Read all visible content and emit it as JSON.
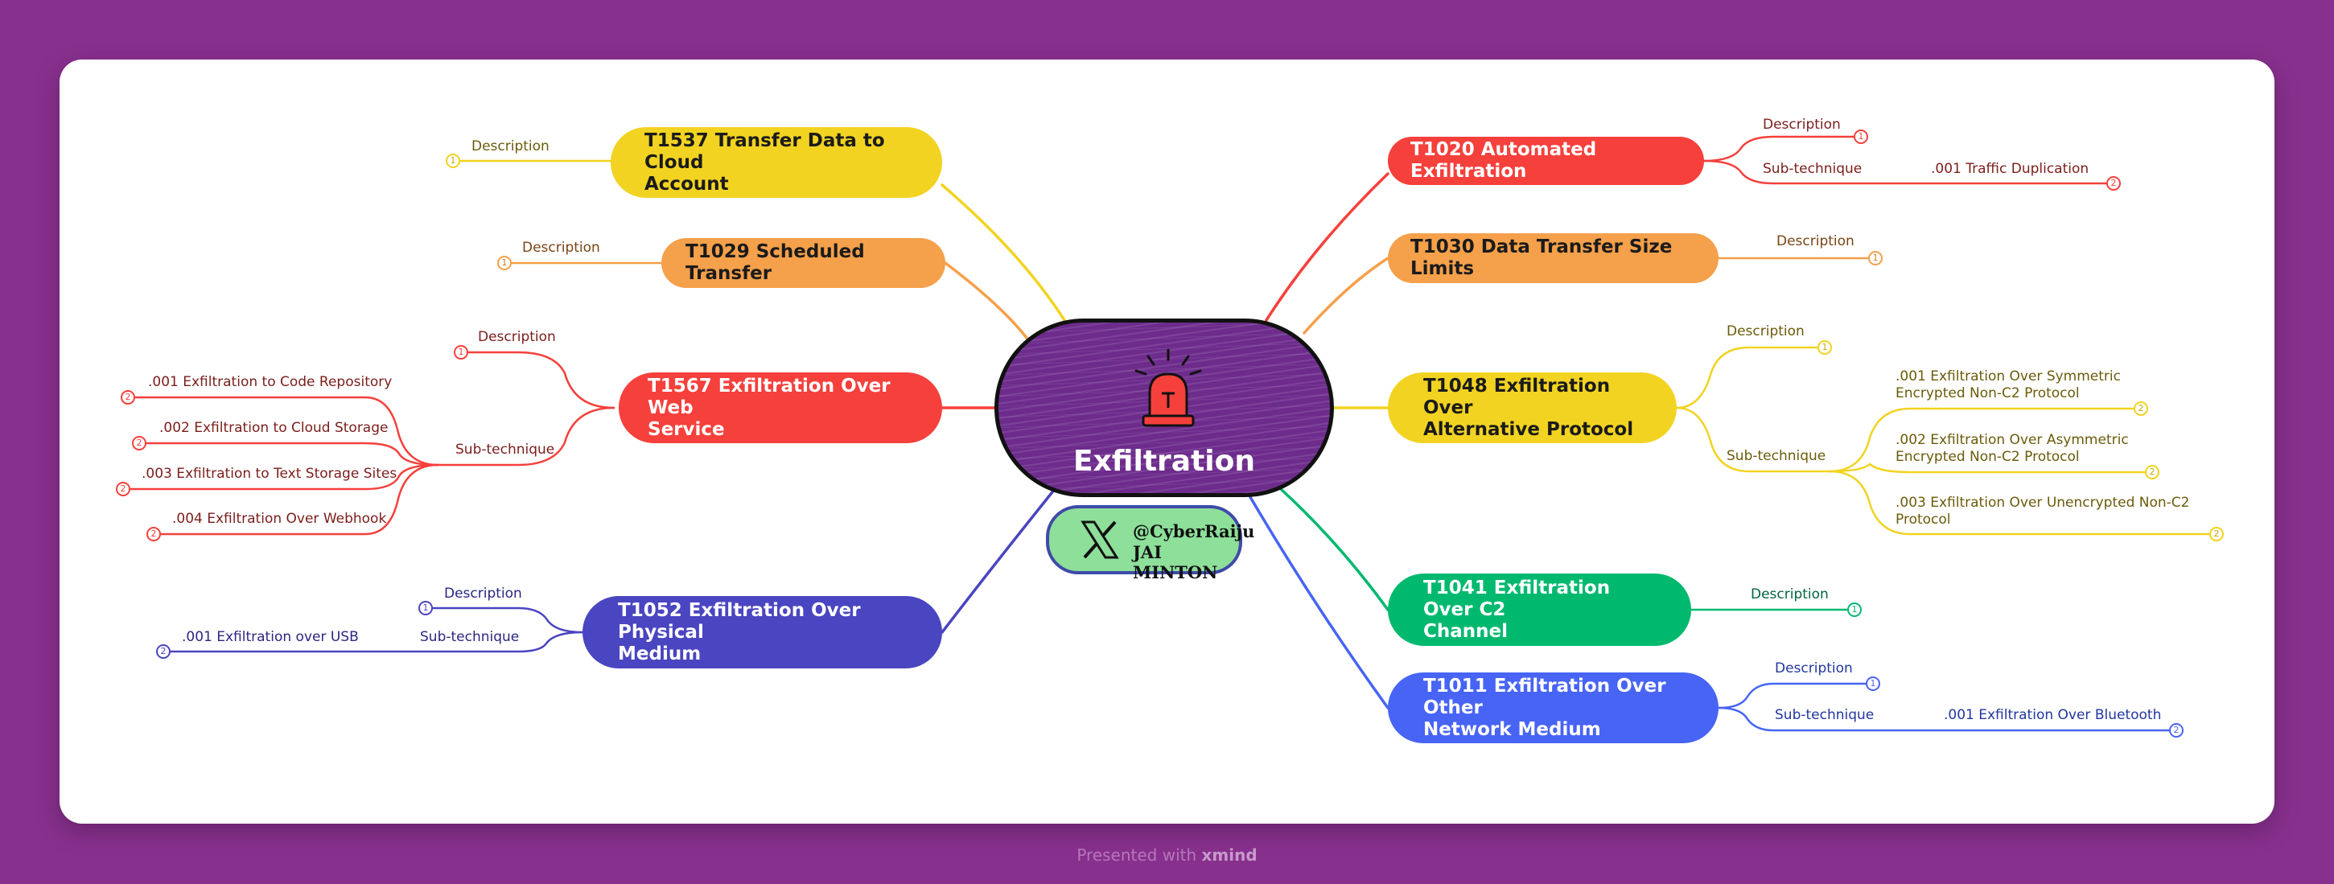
{
  "center": {
    "title": "Exfiltration",
    "icon": "alarm-siren-icon"
  },
  "brand": {
    "icon": "x-logo-icon",
    "handle": "@CyberRaiju",
    "name": "JAI MINTON"
  },
  "footer": {
    "prefix": "Presented with",
    "brand": "xmind"
  },
  "colors": {
    "background": "#88308e",
    "yellow": "#f2d321",
    "orange": "#f5a04a",
    "red": "#f5403c",
    "indigo": "#4a45c0",
    "green": "#00b96f",
    "blue": "#4764f5"
  },
  "branches": {
    "t1537": {
      "title_line1": "T1537 Transfer Data to Cloud",
      "title_line2": "Account",
      "description": "Description",
      "badge1": "1"
    },
    "t1029": {
      "title": "T1029 Scheduled Transfer",
      "description": "Description",
      "badge1": "1"
    },
    "t1567": {
      "title_line1": "T1567 Exfiltration Over Web",
      "title_line2": "Service",
      "description": "Description",
      "badge1": "1",
      "subtechnique": "Sub-technique",
      "subs": [
        {
          "label": ".001 Exfiltration to Code Repository",
          "badge": "2"
        },
        {
          "label": ".002 Exfiltration to Cloud Storage",
          "badge": "2"
        },
        {
          "label": ".003 Exfiltration to Text Storage Sites",
          "badge": "2"
        },
        {
          "label": ".004 Exfiltration Over Webhook",
          "badge": "2"
        }
      ]
    },
    "t1052": {
      "title_line1": "T1052 Exfiltration Over Physical",
      "title_line2": "Medium",
      "description": "Description",
      "badge1": "1",
      "subtechnique": "Sub-technique",
      "subs": [
        {
          "label": ".001 Exfiltration over USB",
          "badge": "2"
        }
      ]
    },
    "t1020": {
      "title": "T1020 Automated Exfiltration",
      "description": "Description",
      "badge1": "1",
      "subtechnique": "Sub-technique",
      "subs": [
        {
          "label": ".001 Traffic Duplication",
          "badge": "2"
        }
      ]
    },
    "t1030": {
      "title": "T1030 Data Transfer Size Limits",
      "description": "Description",
      "badge1": "1"
    },
    "t1048": {
      "title_line1": "T1048 Exfiltration Over",
      "title_line2": "Alternative Protocol",
      "description": "Description",
      "badge1": "1",
      "subtechnique": "Sub-technique",
      "subs": [
        {
          "line1": ".001 Exfiltration Over Symmetric",
          "line2": "Encrypted Non-C2 Protocol",
          "badge": "2"
        },
        {
          "line1": ".002 Exfiltration Over Asymmetric",
          "line2": "Encrypted Non-C2 Protocol",
          "badge": "2"
        },
        {
          "line1": ".003 Exfiltration Over Unencrypted Non-C2",
          "line2": "Protocol",
          "badge": "2"
        }
      ]
    },
    "t1041": {
      "title_line1": "T1041 Exfiltration Over C2",
      "title_line2": "Channel",
      "description": "Description",
      "badge1": "1"
    },
    "t1011": {
      "title_line1": "T1011 Exfiltration Over Other",
      "title_line2": "Network Medium",
      "description": "Description",
      "badge1": "1",
      "subtechnique": "Sub-technique",
      "subs": [
        {
          "label": ".001 Exfiltration Over Bluetooth",
          "badge": "2"
        }
      ]
    }
  }
}
